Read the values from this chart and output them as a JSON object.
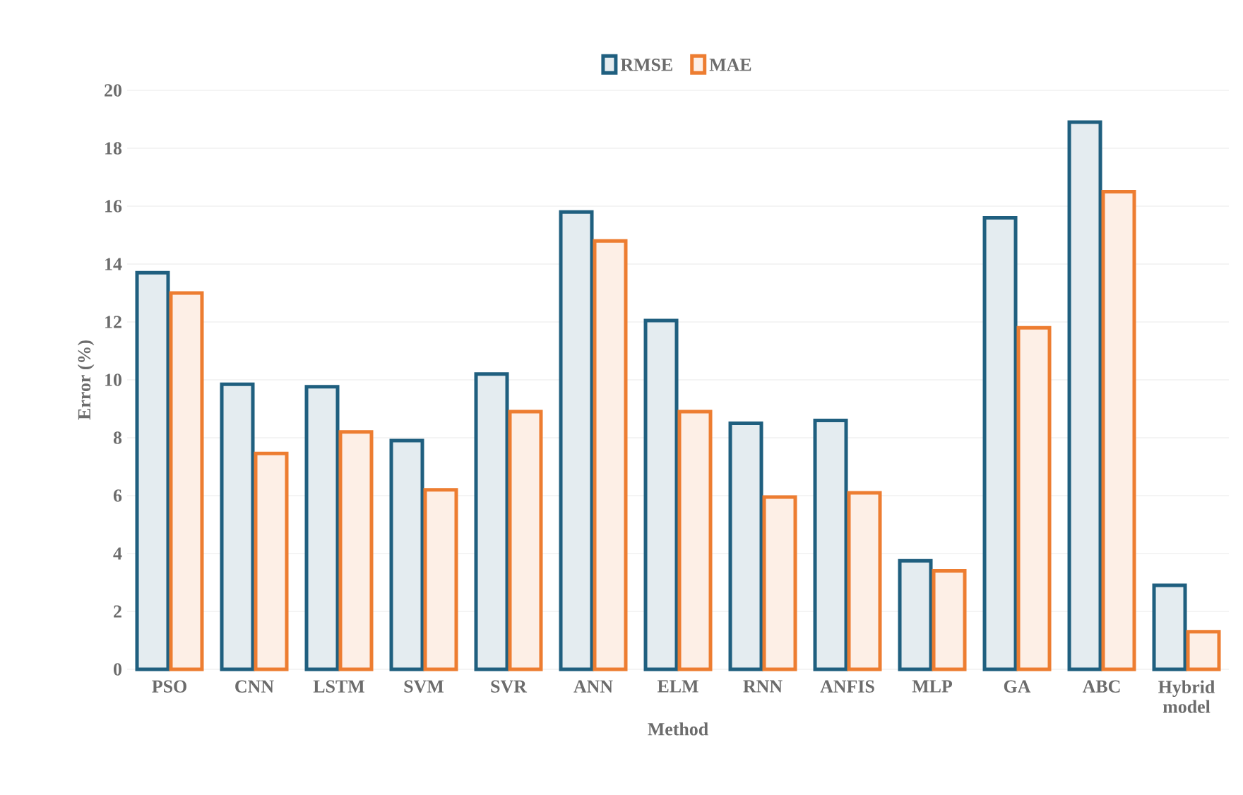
{
  "chart_data": {
    "type": "bar",
    "categories": [
      "PSO",
      "CNN",
      "LSTM",
      "SVM",
      "SVR",
      "ANN",
      "ELM",
      "RNN",
      "ANFIS",
      "MLP",
      "GA",
      "ABC",
      "Hybrid model"
    ],
    "series": [
      {
        "name": "RMSE",
        "color": "#1f5f7f",
        "values": [
          13.7,
          9.85,
          9.76,
          7.9,
          10.2,
          15.8,
          12.05,
          8.5,
          8.6,
          3.75,
          15.6,
          18.9,
          2.9
        ]
      },
      {
        "name": "MAE",
        "color": "#ed7d31",
        "values": [
          13.0,
          7.46,
          8.2,
          6.2,
          8.9,
          14.8,
          8.9,
          5.95,
          6.1,
          3.4,
          11.8,
          16.5,
          1.3
        ]
      }
    ],
    "xlabel": "Method",
    "ylabel": "Error (%)",
    "ylim": [
      0,
      20
    ],
    "yticks": [
      0,
      2,
      4,
      6,
      8,
      10,
      12,
      14,
      16,
      18,
      20
    ],
    "grid": "y",
    "legend": "top"
  }
}
